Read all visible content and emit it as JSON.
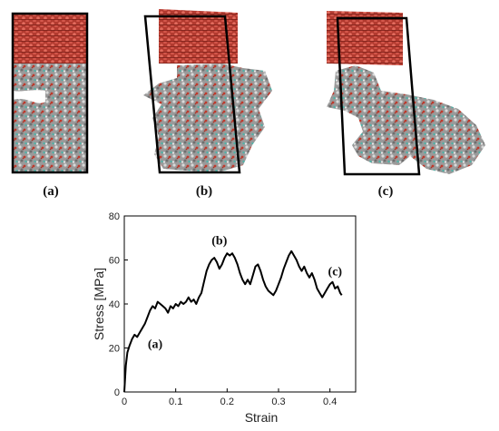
{
  "figure": {
    "panels": [
      {
        "label": "(a)",
        "shape": "rectangle"
      },
      {
        "label": "(b)",
        "shape": "sheared"
      },
      {
        "label": "(c)",
        "shape": "sheared-more"
      }
    ],
    "colors": {
      "crystal": "#b23a2f",
      "crystal_highlight": "#e26b5d",
      "polymer_carbon": "#8c8c8c",
      "polymer_oxygen": "#c0392b",
      "polymer_hydrogen": "#d9d9d9",
      "polymer_accent": "#4fb3a8",
      "cell_border": "#000000"
    }
  },
  "chart_data": {
    "type": "line",
    "xlabel": "Strain",
    "ylabel": "Stress [MPa]",
    "xlim": [
      0,
      0.45
    ],
    "ylim": [
      0,
      80
    ],
    "x_ticks": [
      "0",
      "0.1",
      "0.2",
      "0.3",
      "0.4"
    ],
    "y_ticks": [
      "0",
      "20",
      "40",
      "60",
      "80"
    ],
    "grid": false,
    "series": [
      {
        "color": "#000000",
        "points": [
          [
            0,
            0
          ],
          [
            0.003,
            12
          ],
          [
            0.006,
            18
          ],
          [
            0.01,
            21
          ],
          [
            0.015,
            24
          ],
          [
            0.02,
            26
          ],
          [
            0.025,
            25
          ],
          [
            0.03,
            27
          ],
          [
            0.035,
            29
          ],
          [
            0.04,
            31
          ],
          [
            0.045,
            34
          ],
          [
            0.05,
            37
          ],
          [
            0.055,
            39
          ],
          [
            0.06,
            38
          ],
          [
            0.065,
            41
          ],
          [
            0.07,
            40
          ],
          [
            0.075,
            39
          ],
          [
            0.08,
            38
          ],
          [
            0.085,
            36
          ],
          [
            0.09,
            39
          ],
          [
            0.095,
            38
          ],
          [
            0.1,
            40
          ],
          [
            0.105,
            39
          ],
          [
            0.11,
            41
          ],
          [
            0.115,
            40
          ],
          [
            0.12,
            41
          ],
          [
            0.125,
            43
          ],
          [
            0.13,
            41
          ],
          [
            0.135,
            42
          ],
          [
            0.14,
            40
          ],
          [
            0.145,
            43
          ],
          [
            0.15,
            45
          ],
          [
            0.155,
            50
          ],
          [
            0.16,
            55
          ],
          [
            0.165,
            58
          ],
          [
            0.17,
            60
          ],
          [
            0.175,
            61
          ],
          [
            0.18,
            59
          ],
          [
            0.185,
            56
          ],
          [
            0.19,
            58
          ],
          [
            0.195,
            61
          ],
          [
            0.2,
            63
          ],
          [
            0.205,
            62
          ],
          [
            0.21,
            63
          ],
          [
            0.215,
            61
          ],
          [
            0.22,
            58
          ],
          [
            0.225,
            54
          ],
          [
            0.23,
            51
          ],
          [
            0.235,
            49
          ],
          [
            0.24,
            51
          ],
          [
            0.245,
            49
          ],
          [
            0.25,
            53
          ],
          [
            0.255,
            57
          ],
          [
            0.26,
            58
          ],
          [
            0.265,
            55
          ],
          [
            0.27,
            51
          ],
          [
            0.275,
            48
          ],
          [
            0.28,
            46
          ],
          [
            0.285,
            45
          ],
          [
            0.29,
            44
          ],
          [
            0.295,
            46
          ],
          [
            0.3,
            49
          ],
          [
            0.305,
            52
          ],
          [
            0.31,
            56
          ],
          [
            0.315,
            59
          ],
          [
            0.32,
            62
          ],
          [
            0.325,
            64
          ],
          [
            0.33,
            62
          ],
          [
            0.335,
            60
          ],
          [
            0.34,
            57
          ],
          [
            0.345,
            55
          ],
          [
            0.35,
            57
          ],
          [
            0.355,
            54
          ],
          [
            0.36,
            52
          ],
          [
            0.365,
            54
          ],
          [
            0.37,
            51
          ],
          [
            0.375,
            47
          ],
          [
            0.38,
            45
          ],
          [
            0.385,
            43
          ],
          [
            0.39,
            45
          ],
          [
            0.395,
            47
          ],
          [
            0.4,
            49
          ],
          [
            0.405,
            50
          ],
          [
            0.41,
            47
          ],
          [
            0.415,
            48
          ],
          [
            0.42,
            45
          ],
          [
            0.423,
            44
          ]
        ]
      }
    ],
    "annotations": [
      {
        "text": "(a)",
        "x": 0.06,
        "y": 20
      },
      {
        "text": "(b)",
        "x": 0.185,
        "y": 67
      },
      {
        "text": "(c)",
        "x": 0.41,
        "y": 53
      }
    ]
  }
}
